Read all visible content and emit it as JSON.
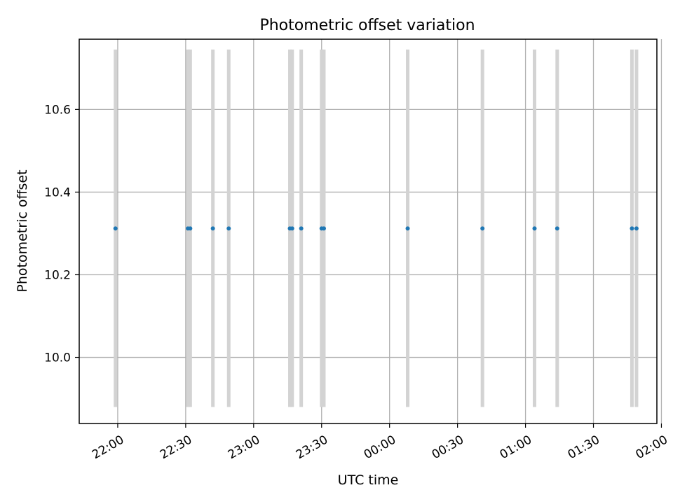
{
  "chart_data": {
    "type": "scatter",
    "title": "Photometric offset variation",
    "xlabel": "UTC time",
    "ylabel": "Photometric offset",
    "grid": true,
    "xlim_minutes_after_2145": [
      -2,
      253
    ],
    "ylim": [
      9.84,
      10.77
    ],
    "x_ticks": [
      "22:00",
      "22:30",
      "23:00",
      "23:30",
      "00:00",
      "00:30",
      "01:00",
      "01:30",
      "02:00"
    ],
    "y_ticks": [
      10.0,
      10.2,
      10.4,
      10.6
    ],
    "colors": {
      "points": "#1f77b4",
      "error_bars": "#d3d3d3",
      "grid": "#b0b0b0"
    },
    "points": [
      {
        "x": "21:59",
        "y": 10.312,
        "yerr_low": 9.88,
        "yerr_high": 10.745
      },
      {
        "x": "22:31",
        "y": 10.312,
        "yerr_low": 9.88,
        "yerr_high": 10.745
      },
      {
        "x": "22:32",
        "y": 10.312,
        "yerr_low": 9.88,
        "yerr_high": 10.745
      },
      {
        "x": "22:42",
        "y": 10.312,
        "yerr_low": 9.88,
        "yerr_high": 10.745
      },
      {
        "x": "22:49",
        "y": 10.312,
        "yerr_low": 9.88,
        "yerr_high": 10.745
      },
      {
        "x": "23:16",
        "y": 10.312,
        "yerr_low": 9.88,
        "yerr_high": 10.745
      },
      {
        "x": "23:17",
        "y": 10.312,
        "yerr_low": 9.88,
        "yerr_high": 10.745
      },
      {
        "x": "23:21",
        "y": 10.312,
        "yerr_low": 9.88,
        "yerr_high": 10.745
      },
      {
        "x": "23:30",
        "y": 10.312,
        "yerr_low": 9.88,
        "yerr_high": 10.745
      },
      {
        "x": "23:31",
        "y": 10.312,
        "yerr_low": 9.88,
        "yerr_high": 10.745
      },
      {
        "x": "00:08",
        "y": 10.312,
        "yerr_low": 9.88,
        "yerr_high": 10.745
      },
      {
        "x": "00:41",
        "y": 10.312,
        "yerr_low": 9.88,
        "yerr_high": 10.745
      },
      {
        "x": "01:04",
        "y": 10.312,
        "yerr_low": 9.88,
        "yerr_high": 10.745
      },
      {
        "x": "01:14",
        "y": 10.312,
        "yerr_low": 9.88,
        "yerr_high": 10.745
      },
      {
        "x": "01:47",
        "y": 10.312,
        "yerr_low": 9.88,
        "yerr_high": 10.745
      },
      {
        "x": "01:49",
        "y": 10.312,
        "yerr_low": 9.88,
        "yerr_high": 10.745
      }
    ]
  }
}
